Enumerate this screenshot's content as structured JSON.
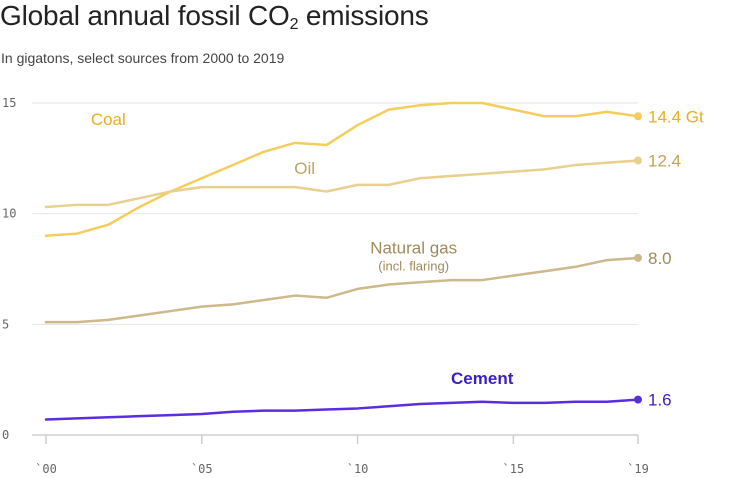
{
  "title": "Global annual fossil CO",
  "title_sub": "2",
  "title_tail": " emissions",
  "subtitle": "In gigatons, select sources from 2000 to 2019",
  "chart_data": {
    "type": "line",
    "x": [
      2000,
      2001,
      2002,
      2003,
      2004,
      2005,
      2006,
      2007,
      2008,
      2009,
      2010,
      2011,
      2012,
      2013,
      2014,
      2015,
      2016,
      2017,
      2018,
      2019
    ],
    "xticks": [
      2000,
      2005,
      2010,
      2015,
      2019
    ],
    "xtick_labels": [
      "`00",
      "`05",
      "`10",
      "`15",
      "`19"
    ],
    "yticks": [
      0,
      5,
      10,
      15
    ],
    "ytick_labels": [
      "0",
      "5",
      "10",
      "15"
    ],
    "xlim": [
      2000,
      2019
    ],
    "ylim": [
      0,
      15.5
    ],
    "grid": true,
    "series": [
      {
        "name": "Coal",
        "color": "#f5cd5c",
        "label_color": "#e8b020",
        "end_label": "14.4 Gt",
        "values": [
          9.0,
          9.1,
          9.5,
          10.3,
          11.0,
          11.6,
          12.2,
          12.8,
          13.2,
          13.1,
          14.0,
          14.7,
          14.9,
          15.0,
          15.0,
          14.7,
          14.4,
          14.4,
          14.6,
          14.4
        ]
      },
      {
        "name": "Oil",
        "color": "#ead08f",
        "label_color": "#c3a35c",
        "end_label": "12.4",
        "values": [
          10.3,
          10.4,
          10.4,
          10.7,
          11.0,
          11.2,
          11.2,
          11.2,
          11.2,
          11.0,
          11.3,
          11.3,
          11.6,
          11.7,
          11.8,
          11.9,
          12.0,
          12.2,
          12.3,
          12.4
        ]
      },
      {
        "name": "Natural gas",
        "sublabel": "(incl. flaring)",
        "color": "#cdb98a",
        "label_color": "#a08a5c",
        "end_label": "8.0",
        "values": [
          5.1,
          5.1,
          5.2,
          5.4,
          5.6,
          5.8,
          5.9,
          6.1,
          6.3,
          6.2,
          6.6,
          6.8,
          6.9,
          7.0,
          7.0,
          7.2,
          7.4,
          7.6,
          7.9,
          8.0
        ]
      },
      {
        "name": "Cement",
        "color": "#5a2de0",
        "label_color": "#3a1fc2",
        "end_label": "1.6",
        "values": [
          0.7,
          0.75,
          0.8,
          0.85,
          0.9,
          0.95,
          1.05,
          1.1,
          1.1,
          1.15,
          1.2,
          1.3,
          1.4,
          1.45,
          1.5,
          1.45,
          1.45,
          1.5,
          1.5,
          1.6
        ]
      }
    ]
  }
}
